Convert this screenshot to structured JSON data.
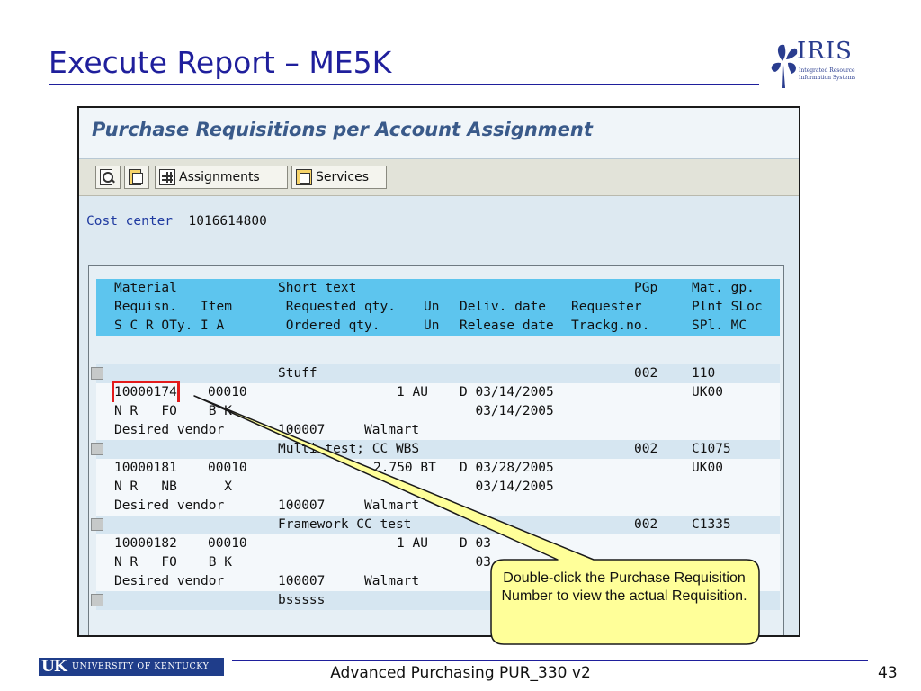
{
  "slide": {
    "title": "Execute Report – ME5K",
    "logo_word": "IRIS",
    "logo_sub": "Integrated Resource Information Systems",
    "footer_org": "UNIVERSITY OF KENTUCKY",
    "footer_org_mark": "UK",
    "footer_course": "Advanced Purchasing PUR_330 v2",
    "page_number": "43"
  },
  "sap": {
    "screen_title": "Purchase Requisitions per Account Assignment",
    "toolbar": {
      "assignments_label": "Assignments",
      "services_label": "Services",
      "icons": [
        "find-icon",
        "detail-icon",
        "assignments-grid-icon",
        "services-detail-icon"
      ]
    },
    "cost_center_label": "Cost center",
    "cost_center_value": "1016614800",
    "header_rows": [
      [
        "Material",
        "Short text",
        "",
        "",
        "",
        "PGp",
        "Mat. gp."
      ],
      [
        "Requisn.   Item",
        " Requested qty.",
        "Un",
        "Deliv. date",
        "Requester",
        "",
        "Plnt SLoc"
      ],
      [
        "S C R OTy. I A",
        " Ordered qty.",
        "Un",
        "Release date",
        "Trackg.no.",
        "",
        "SPl. MC"
      ]
    ],
    "rows": [
      {
        "marker": true,
        "c0": "",
        "c1": "Stuff",
        "c2": "",
        "c3": "",
        "c4": "002",
        "c5": "110"
      },
      {
        "marker": false,
        "c0": "10000174",
        "c0b": "00010",
        "c1": "",
        "c2": "1 AU",
        "c3": "D 03/14/2005",
        "c4": "",
        "c5": "UK00"
      },
      {
        "marker": false,
        "c0": "N R   FO    B K",
        "c1": "",
        "c2": "",
        "c3": "  03/14/2005",
        "c4": "",
        "c5": ""
      },
      {
        "marker": false,
        "c0": "Desired vendor",
        "c1": "100007     Walmart",
        "c2": "",
        "c3": "",
        "c4": "",
        "c5": ""
      },
      {
        "marker": true,
        "c0": "",
        "c1": "Multi test; CC WBS",
        "c2": "",
        "c3": "",
        "c4": "002",
        "c5": "C1075"
      },
      {
        "marker": false,
        "c0": "10000181",
        "c0b": "00010",
        "c1": "",
        "c2": "2.750 BT",
        "c3": "D 03/28/2005",
        "c4": "",
        "c5": "UK00"
      },
      {
        "marker": false,
        "c0": "N R   NB      X",
        "c1": "",
        "c2": "",
        "c3": "  03/14/2005",
        "c4": "",
        "c5": ""
      },
      {
        "marker": false,
        "c0": "Desired vendor",
        "c1": "100007     Walmart",
        "c2": "",
        "c3": "",
        "c4": "",
        "c5": ""
      },
      {
        "marker": true,
        "c0": "",
        "c1": "Framework CC test",
        "c2": "",
        "c3": "",
        "c4": "002",
        "c5": "C1335"
      },
      {
        "marker": false,
        "c0": "10000182",
        "c0b": "00010",
        "c1": "",
        "c2": "1 AU",
        "c3": "D 03",
        "c4": "",
        "c5": ""
      },
      {
        "marker": false,
        "c0": "N R   FO    B K",
        "c1": "",
        "c2": "",
        "c3": "  03",
        "c4": "",
        "c5": ""
      },
      {
        "marker": false,
        "c0": "Desired vendor",
        "c1": "100007     Walmart",
        "c2": "",
        "c3": "",
        "c4": "",
        "c5": ""
      },
      {
        "marker": true,
        "c0": "",
        "c1": "bsssss",
        "c2": "",
        "c3": "",
        "c4": "",
        "c5": ""
      }
    ]
  },
  "callout": {
    "text": "Double-click the Purchase Requisition Number to view the actual Requisition."
  },
  "colors": {
    "title_blue": "#1f1f9c",
    "header_band": "#5dc5ee",
    "callout_fill": "#ffff99",
    "highlight_red": "#e31b1b"
  }
}
